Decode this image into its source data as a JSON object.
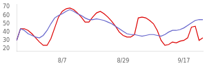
{
  "chart_data": {
    "type": "line",
    "categories": [
      null,
      null,
      null,
      null,
      null,
      null,
      null,
      null,
      null,
      null,
      null,
      null,
      "8/7",
      null,
      null,
      null,
      null,
      null,
      null,
      null,
      null,
      null,
      null,
      null,
      null,
      null,
      null,
      null,
      "8/29",
      null,
      null,
      null,
      null,
      null,
      null,
      null,
      null,
      null,
      null,
      null,
      null,
      null,
      null,
      null,
      "9/17",
      null,
      null,
      null,
      null,
      null
    ],
    "series": [
      {
        "color": "#6666cc",
        "values": [
          30,
          44,
          42,
          38,
          36,
          34,
          33,
          36,
          42,
          50,
          57,
          60,
          62,
          65,
          67,
          65,
          62,
          60,
          57,
          55,
          55,
          56,
          55,
          54,
          52,
          50,
          47,
          44,
          41,
          38,
          37,
          37,
          36,
          35,
          36,
          37,
          37,
          36,
          35,
          37,
          40,
          42,
          42,
          43,
          45,
          48,
          51,
          54,
          55,
          55
        ]
      },
      {
        "color": "#dd0000",
        "values": [
          30,
          44,
          44,
          42,
          38,
          33,
          28,
          24,
          24,
          32,
          45,
          58,
          65,
          68,
          69,
          67,
          63,
          58,
          52,
          52,
          58,
          63,
          65,
          62,
          58,
          53,
          47,
          40,
          36,
          34,
          34,
          37,
          57,
          58,
          57,
          54,
          50,
          42,
          30,
          24,
          25,
          28,
          27,
          29,
          30,
          33,
          46,
          47,
          30,
          33
        ]
      }
    ],
    "ylim": [
      17,
      73
    ],
    "yticks": [
      20,
      30,
      40,
      50,
      60,
      70
    ],
    "grid": false
  }
}
